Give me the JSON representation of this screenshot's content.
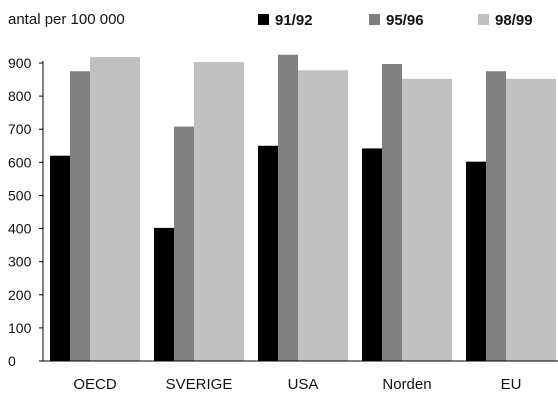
{
  "chart_data": {
    "type": "bar",
    "ylabel": "antal per 100 000",
    "categories": [
      "OECD",
      "SVERIGE",
      "USA",
      "Norden",
      "EU"
    ],
    "series": [
      {
        "name": "91/92",
        "color": "#000000",
        "values": [
          620,
          402,
          650,
          642,
          602
        ]
      },
      {
        "name": "95/96",
        "color": "#808080",
        "values": [
          875,
          708,
          925,
          897,
          875
        ]
      },
      {
        "name": "98/99",
        "color": "#c0c0c0",
        "values": [
          918,
          903,
          878,
          852,
          852
        ]
      }
    ],
    "ylim": [
      0,
      900
    ],
    "yticks": [
      0,
      100,
      200,
      300,
      400,
      500,
      600,
      700,
      800,
      900
    ],
    "grid": false,
    "legend_position": "top"
  }
}
